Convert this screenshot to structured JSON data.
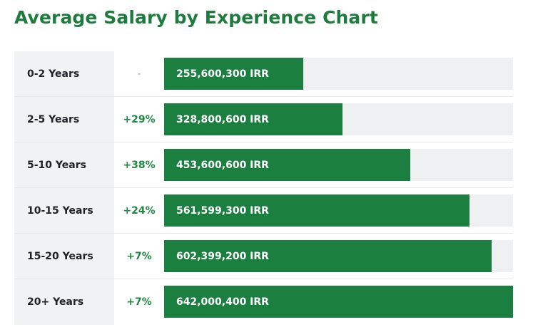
{
  "chart_data": {
    "type": "bar",
    "orientation": "horizontal",
    "title": "Average Salary by Experience Chart",
    "categories": [
      "0-2 Years",
      "2-5 Years",
      "5-10 Years",
      "10-15 Years",
      "15-20 Years",
      "20+ Years"
    ],
    "values": [
      255600300,
      328800600,
      453600600,
      561599300,
      602399200,
      642000400
    ],
    "value_labels": [
      "255,600,300 IRR",
      "328,800,600 IRR",
      "453,600,600 IRR",
      "561,599,300 IRR",
      "602,399,200 IRR",
      "642,000,400 IRR"
    ],
    "changes": [
      "-",
      "+29%",
      "+38%",
      "+24%",
      "+7%",
      "+7%"
    ],
    "xlim": [
      0,
      642000400
    ],
    "grid": false,
    "legend": "none",
    "colors": {
      "title": "#1e7b3e",
      "bar": "#1b7f40",
      "track": "#eff0f2",
      "label_bg": "#f1f2f4",
      "change_positive": "#1e8a43",
      "change_none": "#9aa0a6"
    }
  }
}
